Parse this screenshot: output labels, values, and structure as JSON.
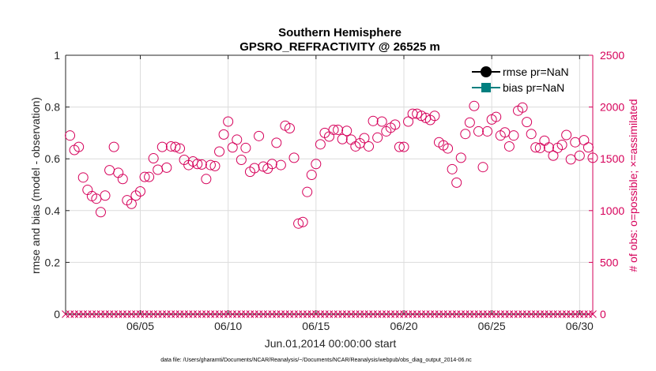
{
  "chart_data": {
    "type": "scatter",
    "title": "Southern Hemisphere",
    "subtitle": "GPSRO_REFRACTIVITY @ 26525 m",
    "xlabel": "Jun.01,2014 00:00:00 start",
    "ylabel_left": "rmse and bias (model - observation)",
    "ylabel_right": "# of obs: o=possible; ×=assimilated",
    "footer": "data file: /Users/gharamti/Documents/NCAR/Reanalysis/~/Documents/NCAR/Reanalysis/webpub/obs_diag_output_2014-06.nc",
    "xlim": [
      0.75,
      30.75
    ],
    "ylim_left": [
      0,
      1
    ],
    "ylim_right": [
      0,
      2500
    ],
    "x_ticks": [
      {
        "day": 5,
        "label": "06/05"
      },
      {
        "day": 10,
        "label": "06/10"
      },
      {
        "day": 15,
        "label": "06/15"
      },
      {
        "day": 20,
        "label": "06/20"
      },
      {
        "day": 25,
        "label": "06/25"
      },
      {
        "day": 30,
        "label": "06/30"
      }
    ],
    "y_ticks_left": [
      "0",
      "0.2",
      "0.4",
      "0.6",
      "0.8",
      "1"
    ],
    "y_ticks_right": [
      "0",
      "500",
      "1000",
      "1500",
      "2000",
      "2500"
    ],
    "grid": true,
    "legend": {
      "position": "top-right",
      "entries": [
        {
          "label": "rmse pr=NaN",
          "color": "#000000",
          "marker": "circle"
        },
        {
          "label": "bias pr=NaN",
          "color": "#007f7f",
          "marker": "square"
        }
      ]
    },
    "colors": {
      "left_axis": "#262626",
      "right_axis": "#d6005a",
      "grid": "#dcdcdc"
    },
    "series": [
      {
        "name": "rmse",
        "values": []
      },
      {
        "name": "bias",
        "values": []
      },
      {
        "name": "possible obs",
        "marker": "circle",
        "x": [
          1.0,
          1.25,
          1.5,
          1.75,
          2.0,
          2.25,
          2.5,
          2.75,
          3.0,
          3.25,
          3.5,
          3.75,
          4.0,
          4.25,
          4.5,
          4.75,
          5.0,
          5.25,
          5.5,
          5.75,
          6.0,
          6.25,
          6.5,
          6.75,
          7.0,
          7.25,
          7.5,
          7.75,
          8.0,
          8.25,
          8.5,
          8.75,
          9.0,
          9.25,
          9.5,
          9.75,
          10.0,
          10.25,
          10.5,
          10.75,
          11.0,
          11.25,
          11.5,
          11.75,
          12.0,
          12.25,
          12.5,
          12.75,
          13.0,
          13.25,
          13.5,
          13.75,
          14.0,
          14.25,
          14.5,
          14.75,
          15.0,
          15.25,
          15.5,
          15.75,
          16.0,
          16.25,
          16.5,
          16.75,
          17.0,
          17.25,
          17.5,
          17.75,
          18.0,
          18.25,
          18.5,
          18.75,
          19.0,
          19.25,
          19.5,
          19.75,
          20.0,
          20.25,
          20.5,
          20.75,
          21.0,
          21.25,
          21.5,
          21.75,
          22.0,
          22.25,
          22.5,
          22.75,
          23.0,
          23.25,
          23.5,
          23.75,
          24.0,
          24.25,
          24.5,
          24.75,
          25.0,
          25.25,
          25.5,
          25.75,
          26.0,
          26.25,
          26.5,
          26.75,
          27.0,
          27.25,
          27.5,
          27.75,
          28.0,
          28.25,
          28.5,
          28.75,
          29.0,
          29.25,
          29.5,
          29.75,
          30.0,
          30.25,
          30.5,
          30.75
        ],
        "values": [
          1725,
          1585,
          1615,
          1320,
          1200,
          1140,
          1115,
          985,
          1145,
          1390,
          1615,
          1365,
          1305,
          1100,
          1065,
          1145,
          1185,
          1325,
          1325,
          1505,
          1395,
          1615,
          1415,
          1620,
          1615,
          1600,
          1490,
          1440,
          1475,
          1450,
          1445,
          1305,
          1440,
          1430,
          1570,
          1735,
          1860,
          1610,
          1685,
          1490,
          1605,
          1375,
          1410,
          1720,
          1425,
          1405,
          1450,
          1655,
          1440,
          1820,
          1795,
          1510,
          875,
          890,
          1180,
          1345,
          1450,
          1640,
          1750,
          1715,
          1780,
          1780,
          1690,
          1770,
          1685,
          1620,
          1650,
          1700,
          1620,
          1865,
          1705,
          1860,
          1765,
          1800,
          1830,
          1615,
          1615,
          1860,
          1935,
          1935,
          1915,
          1895,
          1875,
          1915,
          1660,
          1630,
          1600,
          1400,
          1270,
          1510,
          1740,
          1850,
          2010,
          1765,
          1420,
          1765,
          1880,
          1905,
          1725,
          1755,
          1620,
          1725,
          1965,
          1995,
          1855,
          1740,
          1610,
          1605,
          1675,
          1610,
          1530,
          1605,
          1635,
          1730,
          1495,
          1660,
          1530,
          1680,
          1610,
          1510
        ]
      },
      {
        "name": "assimilated obs",
        "marker": "x",
        "count_per_day": 4,
        "value_each": 0
      }
    ]
  }
}
